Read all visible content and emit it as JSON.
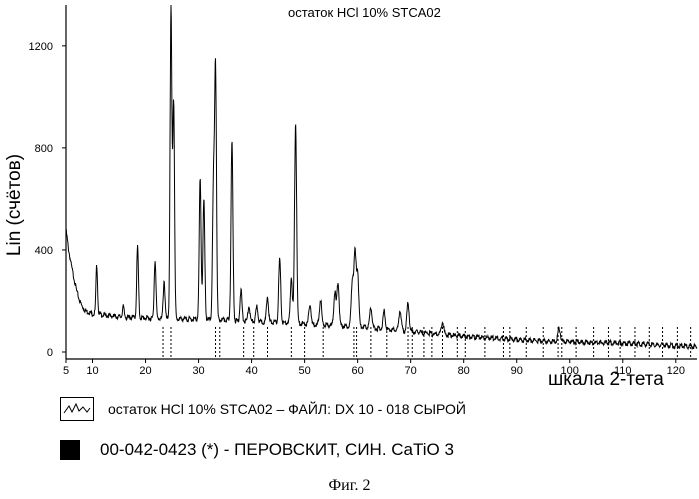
{
  "chart_data": {
    "type": "line",
    "title": "остаток HCl 10%  STCA02",
    "ylabel": "Lin (счётов)",
    "xlabel": "шкала 2-тета",
    "xlim": [
      5,
      124
    ],
    "ylim": [
      0,
      1360
    ],
    "x_ticks": [
      5,
      10,
      20,
      30,
      40,
      50,
      60,
      70,
      80,
      90,
      100,
      110,
      120
    ],
    "y_ticks": [
      0,
      400,
      800,
      1200
    ],
    "grid": false,
    "series": [
      {
        "name": "остаток HCl 10%  STCA02 – ФАЙЛ: DX 10 - 018 СЫРОЙ",
        "background": [
          [
            5.0,
            480
          ],
          [
            5.5,
            400
          ],
          [
            6.0,
            340
          ],
          [
            6.5,
            290
          ],
          [
            7.0,
            240
          ],
          [
            7.5,
            205
          ],
          [
            8.0,
            180
          ],
          [
            8.5,
            165
          ],
          [
            9.0,
            158
          ],
          [
            9.5,
            155
          ],
          [
            10.0,
            150
          ],
          [
            12.0,
            145
          ],
          [
            14.0,
            140
          ],
          [
            16.0,
            137
          ],
          [
            18.0,
            135
          ],
          [
            20.0,
            133
          ],
          [
            25.0,
            130
          ],
          [
            30.0,
            128
          ],
          [
            35.0,
            125
          ],
          [
            40.0,
            120
          ],
          [
            45.0,
            115
          ],
          [
            50.0,
            110
          ],
          [
            55.0,
            105
          ],
          [
            60.0,
            100
          ],
          [
            65.0,
            90
          ],
          [
            70.0,
            80
          ],
          [
            75.0,
            70
          ],
          [
            80.0,
            62
          ],
          [
            85.0,
            55
          ],
          [
            90.0,
            48
          ],
          [
            95.0,
            43
          ],
          [
            100.0,
            40
          ],
          [
            105.0,
            37
          ],
          [
            110.0,
            34
          ],
          [
            115.0,
            30
          ],
          [
            120.0,
            25
          ],
          [
            124.0,
            20
          ]
        ],
        "peaks": [
          [
            10.8,
            190
          ],
          [
            15.8,
            40
          ],
          [
            18.5,
            280
          ],
          [
            21.8,
            230
          ],
          [
            23.5,
            150
          ],
          [
            24.8,
            1220
          ],
          [
            25.3,
            850
          ],
          [
            30.3,
            550
          ],
          [
            31.0,
            470
          ],
          [
            32.8,
            500
          ],
          [
            33.2,
            990
          ],
          [
            36.3,
            700
          ],
          [
            38.0,
            120
          ],
          [
            39.5,
            60
          ],
          [
            41.0,
            60
          ],
          [
            43.0,
            100
          ],
          [
            45.3,
            250
          ],
          [
            47.5,
            180
          ],
          [
            48.3,
            790
          ],
          [
            51.0,
            80
          ],
          [
            53.0,
            100
          ],
          [
            55.7,
            130
          ],
          [
            56.3,
            170
          ],
          [
            59.0,
            180
          ],
          [
            59.5,
            280
          ],
          [
            60.0,
            210
          ],
          [
            62.5,
            80
          ],
          [
            65.0,
            70
          ],
          [
            68.0,
            80
          ],
          [
            69.5,
            110
          ],
          [
            76.0,
            50
          ],
          [
            98.0,
            50
          ]
        ]
      },
      {
        "name": "00-042-0423 (*) - ПЕРОВСКИТ, СИН. CaTiO3",
        "marker_positions": [
          23.3,
          24.8,
          33.2,
          34.0,
          38.5,
          40.4,
          43.0,
          47.5,
          50.0,
          53.5,
          59.3,
          59.8,
          62.5,
          65.5,
          69.5,
          70.3,
          72.5,
          74.0,
          76.0,
          78.8,
          80.3,
          84.0,
          87.5,
          88.7,
          91.8,
          95.0,
          97.8,
          98.5,
          101.2,
          104.5,
          107.3,
          109.5,
          112.3,
          115.0,
          117.5,
          120.3,
          122.8
        ]
      }
    ]
  },
  "legend": {
    "line_label": "остаток HCl 10%  STCA02 – ФАЙЛ: DX 10 - 018 СЫРОЙ",
    "marker_label": "00-042-0423 (*) - ПЕРОВСКИТ, СИН. CaTiO 3"
  },
  "caption": "Фиг. 2"
}
